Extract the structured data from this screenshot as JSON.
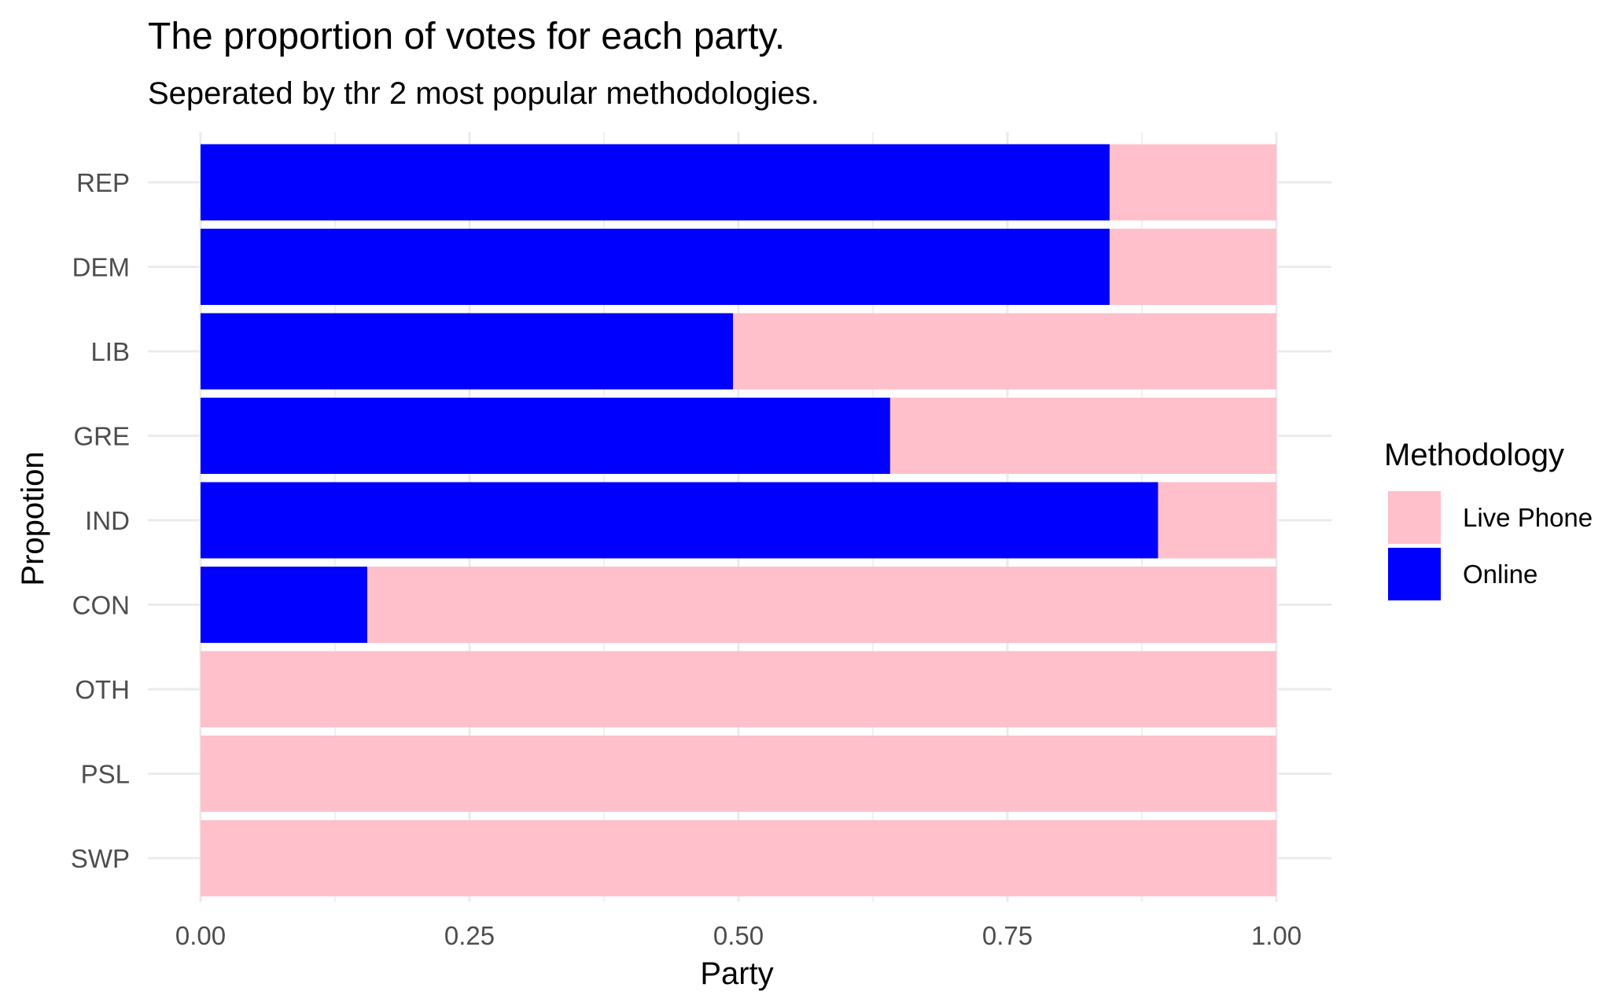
{
  "chart_data": {
    "type": "bar",
    "orientation": "horizontal",
    "stacked": true,
    "title": "The proportion of votes for each party.",
    "subtitle": "Seperated by thr 2 most popular methodologies.",
    "xlabel": "Party",
    "ylabel": "Propotion",
    "xlim": [
      0,
      1
    ],
    "x_ticks": [
      "0.00",
      "0.25",
      "0.50",
      "0.75",
      "1.00"
    ],
    "grid": true,
    "legend": {
      "title": "Methodology",
      "position": "right"
    },
    "categories": [
      "REP",
      "DEM",
      "LIB",
      "GRE",
      "IND",
      "CON",
      "OTH",
      "PSL",
      "SWP"
    ],
    "series": [
      {
        "name": "Online",
        "color": "#0000ff",
        "values": [
          0.845,
          0.845,
          0.495,
          0.641,
          0.89,
          0.155,
          0,
          0,
          0
        ]
      },
      {
        "name": "Live Phone",
        "color": "#ffc0cb",
        "values": [
          0.155,
          0.155,
          0.505,
          0.359,
          0.11,
          0.845,
          1,
          1,
          1
        ]
      }
    ],
    "legend_order": [
      "Live Phone",
      "Online"
    ]
  }
}
